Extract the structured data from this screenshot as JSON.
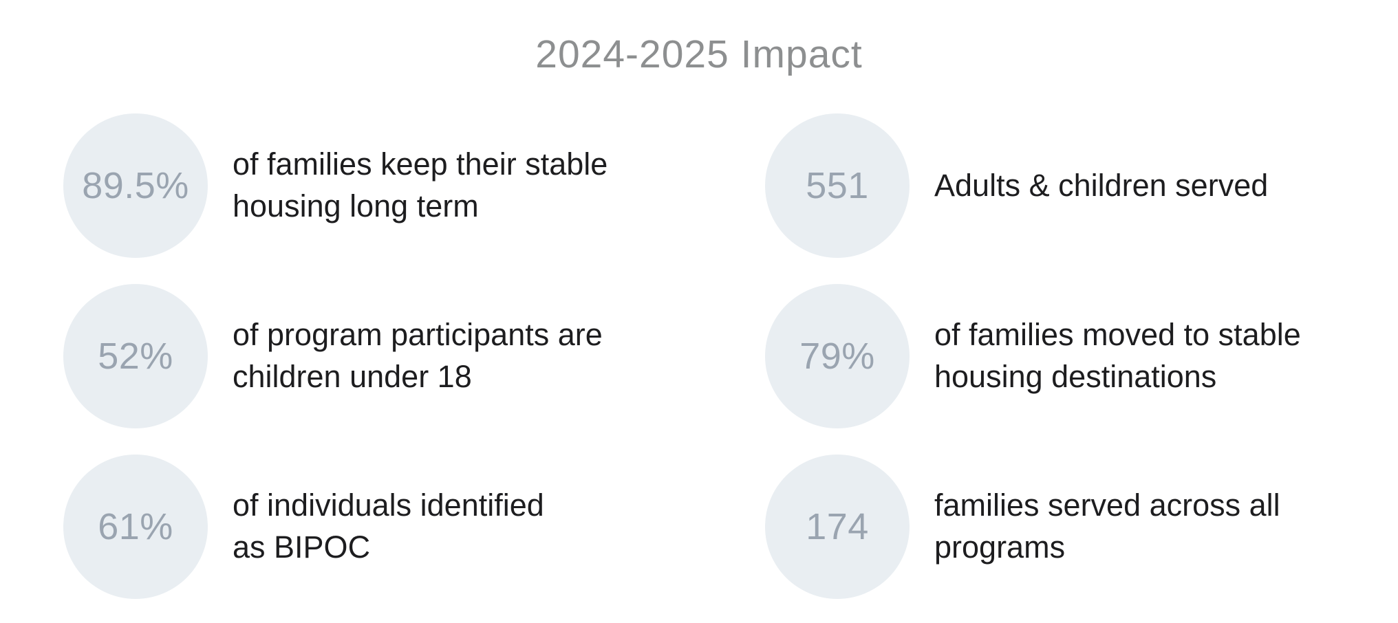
{
  "title": "2024-2025 Impact",
  "colors": {
    "background": "#ffffff",
    "circle_fill": "#e9eef2",
    "number_text": "#9aa4b0",
    "label_text": "#1d1d1f",
    "title_text": "#8d8f90"
  },
  "stats": [
    {
      "value": "89.5%",
      "label": "of families keep their stable\nhousing long term"
    },
    {
      "value": "551",
      "label": "Adults & children served"
    },
    {
      "value": "52%",
      "label": "of program participants are\nchildren under 18"
    },
    {
      "value": "79%",
      "label": "of families moved to stable\nhousing destinations"
    },
    {
      "value": "61%",
      "label": "of individuals identified\nas BIPOC"
    },
    {
      "value": "174",
      "label": "families served across all\nprograms"
    }
  ],
  "chart_data": {
    "type": "table",
    "title": "2024-2025 Impact",
    "columns": [
      "value",
      "description"
    ],
    "rows": [
      [
        "89.5%",
        "of families keep their stable housing long term"
      ],
      [
        "551",
        "Adults & children served"
      ],
      [
        "52%",
        "of program participants are children under 18"
      ],
      [
        "79%",
        "of families moved to stable housing destinations"
      ],
      [
        "61%",
        "of individuals identified as BIPOC"
      ],
      [
        "174",
        "families served across all programs"
      ]
    ],
    "layout": "two-column stat callouts, three rows, circle badge left of each description"
  }
}
